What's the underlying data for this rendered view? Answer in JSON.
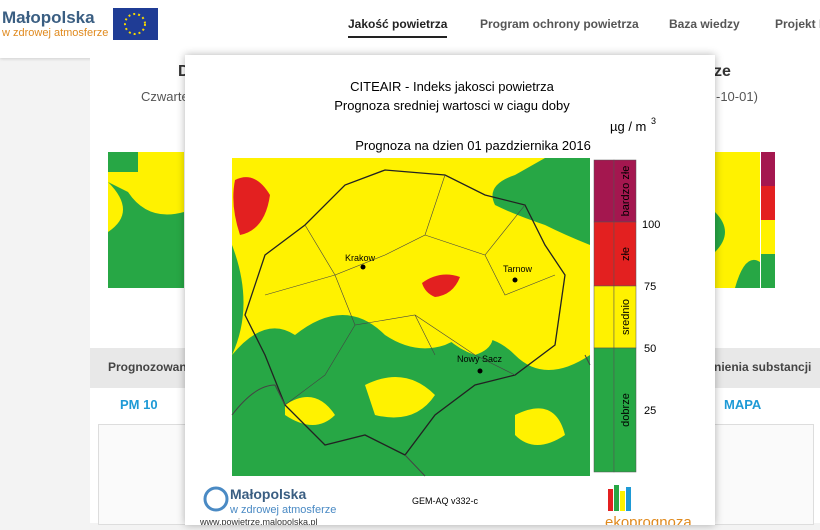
{
  "header": {
    "logo_title": "Małopolska",
    "logo_subtitle": "w zdrowej atmosferze",
    "nav": [
      "Jakość powietrza",
      "Program ochrony powietrza",
      "Baza wiedzy",
      "Projekt L"
    ]
  },
  "background": {
    "heading_left": "D",
    "heading_right": "ze",
    "date_left": "Czwarte",
    "date_right": "-10-01)",
    "tab_left": "Prognozowane",
    "tab_right": "nienia substancji",
    "pollutant": "PM 10",
    "view": "MAPA"
  },
  "modal": {
    "title_line1": "CITEAIR - Indeks jakosci powietrza",
    "title_line2": "Prognoza sredniej wartosci w ciagu doby",
    "forecast_date": "Prognoza na dzien  01 pazdziernika 2016",
    "unit": "µg / m",
    "unit_exponent": "3",
    "legend": {
      "levels": [
        "bardzo złe",
        "złe",
        "srednio",
        "dobrze"
      ],
      "scale": [
        "100",
        "75",
        "50",
        "25"
      ]
    },
    "cities": [
      "Krakow",
      "Tarnow",
      "Nowy Sacz"
    ],
    "model": "GEM-AQ v332-c",
    "footer_logo_title": "Małopolska",
    "footer_logo_subtitle": "w zdrowej atmosferze",
    "footer_url": "www.powietrze.malopolska.pl",
    "partner": "ekoprognoza"
  }
}
